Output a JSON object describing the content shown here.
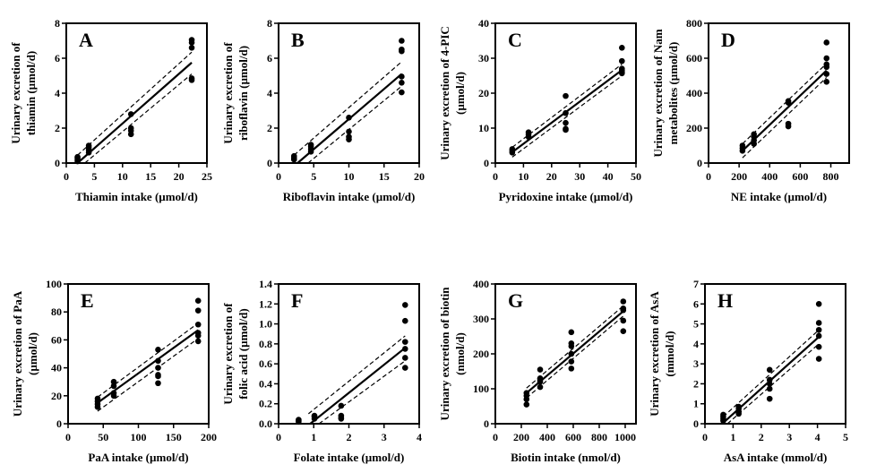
{
  "chart_data": [
    {
      "type": "scatter",
      "panel_label": "A",
      "xlabel": "Thiamin intake (µmol/d)",
      "ylabel": [
        "Urinary excretion of",
        "thiamin (µmol/d)"
      ],
      "xlim": [
        0,
        25
      ],
      "ylim": [
        0,
        8
      ],
      "xticks": [
        0,
        5,
        10,
        15,
        20,
        25
      ],
      "yticks": [
        0,
        2,
        4,
        6,
        8
      ],
      "ytick_labels": [
        "0",
        "2",
        "4",
        "6",
        "8"
      ],
      "points": [
        [
          2,
          0.1
        ],
        [
          2,
          0.2
        ],
        [
          2,
          0.3
        ],
        [
          2,
          0.35
        ],
        [
          4,
          0.6
        ],
        [
          4,
          0.75
        ],
        [
          4,
          0.9
        ],
        [
          4,
          1.0
        ],
        [
          11.5,
          2.8
        ],
        [
          11.5,
          2.0
        ],
        [
          11.5,
          1.85
        ],
        [
          11.5,
          1.65
        ],
        [
          22.3,
          7.05
        ],
        [
          22.3,
          6.9
        ],
        [
          22.3,
          6.6
        ],
        [
          22.3,
          4.85
        ],
        [
          22.3,
          4.75
        ]
      ],
      "fit": [
        [
          2,
          0
        ],
        [
          22.3,
          5.75
        ]
      ],
      "ci_upper": [
        [
          2,
          0.45
        ],
        [
          22.3,
          6.35
        ]
      ],
      "ci_lower": [
        [
          3.3,
          0
        ],
        [
          22.3,
          5.1
        ]
      ]
    },
    {
      "type": "scatter",
      "panel_label": "B",
      "xlabel": "Riboflavin intake (µmol/d)",
      "ylabel": [
        "Urinary excretion of",
        "riboflavin (µmol/d)"
      ],
      "xlim": [
        0,
        20
      ],
      "ylim": [
        0,
        8
      ],
      "xticks": [
        0,
        5,
        10,
        15,
        20
      ],
      "yticks": [
        0,
        2,
        4,
        6,
        8
      ],
      "ytick_labels": [
        "0",
        "2",
        "4",
        "6",
        "8"
      ],
      "points": [
        [
          2.2,
          0.2
        ],
        [
          2.2,
          0.3
        ],
        [
          2.2,
          0.4
        ],
        [
          4.6,
          0.65
        ],
        [
          4.6,
          0.8
        ],
        [
          4.6,
          0.95
        ],
        [
          4.6,
          1.05
        ],
        [
          10,
          2.6
        ],
        [
          10,
          1.8
        ],
        [
          10,
          1.5
        ],
        [
          10,
          1.35
        ],
        [
          17.5,
          7.0
        ],
        [
          17.5,
          6.5
        ],
        [
          17.5,
          6.4
        ],
        [
          17.5,
          4.95
        ],
        [
          17.5,
          4.6
        ],
        [
          17.5,
          4.05
        ]
      ],
      "fit": [
        [
          2.7,
          0
        ],
        [
          17.5,
          5.1
        ]
      ],
      "ci_upper": [
        [
          2.2,
          0.45
        ],
        [
          17.5,
          5.8
        ]
      ],
      "ci_lower": [
        [
          4.2,
          0
        ],
        [
          17.5,
          4.4
        ]
      ]
    },
    {
      "type": "scatter",
      "panel_label": "C",
      "xlabel": "Pyridoxine intake (µmol/d)",
      "ylabel": [
        "Urinary excretion of 4-PIC",
        "(µmol/d)"
      ],
      "xlim": [
        0,
        50
      ],
      "ylim": [
        0,
        40
      ],
      "xticks": [
        0,
        10,
        20,
        30,
        40,
        50
      ],
      "yticks": [
        0,
        10,
        20,
        30,
        40
      ],
      "ytick_labels": [
        "0",
        "10",
        "20",
        "30",
        "40"
      ],
      "points": [
        [
          6,
          3
        ],
        [
          6,
          3.5
        ],
        [
          6,
          4
        ],
        [
          11.8,
          7.5
        ],
        [
          11.8,
          8.2
        ],
        [
          11.8,
          8.8
        ],
        [
          25,
          19.2
        ],
        [
          25,
          14.3
        ],
        [
          25,
          11.5
        ],
        [
          25,
          9.8
        ],
        [
          25,
          9.5
        ],
        [
          45,
          33
        ],
        [
          45,
          29.2
        ],
        [
          45,
          27
        ],
        [
          45,
          26.5
        ],
        [
          45,
          26
        ],
        [
          45,
          25.7
        ]
      ],
      "fit": [
        [
          6,
          3.1
        ],
        [
          45,
          26.6
        ]
      ],
      "ci_upper": [
        [
          6,
          4.5
        ],
        [
          45,
          28.3
        ]
      ],
      "ci_lower": [
        [
          6,
          1.7
        ],
        [
          45,
          25
        ]
      ]
    },
    {
      "type": "scatter",
      "panel_label": "D",
      "xlabel": "NE intake (µmol/d)",
      "ylabel": [
        "Urinary excretion of Nam",
        "metabolites (µmol/d)"
      ],
      "xlim": [
        0,
        920
      ],
      "ylim": [
        0,
        800
      ],
      "xticks": [
        0,
        200,
        400,
        600,
        800
      ],
      "yticks": [
        0,
        200,
        400,
        600,
        800
      ],
      "ytick_labels": [
        "0",
        "200",
        "400",
        "600",
        "800"
      ],
      "points": [
        [
          222,
          70
        ],
        [
          222,
          85
        ],
        [
          222,
          100
        ],
        [
          297,
          110
        ],
        [
          297,
          130
        ],
        [
          297,
          150
        ],
        [
          297,
          165
        ],
        [
          522,
          355
        ],
        [
          522,
          345
        ],
        [
          522,
          225
        ],
        [
          522,
          210
        ],
        [
          772,
          690
        ],
        [
          772,
          600
        ],
        [
          772,
          565
        ],
        [
          772,
          550
        ],
        [
          772,
          510
        ],
        [
          772,
          465
        ]
      ],
      "fit": [
        [
          222,
          70
        ],
        [
          772,
          530
        ]
      ],
      "ci_upper": [
        [
          222,
          110
        ],
        [
          772,
          570
        ]
      ],
      "ci_lower": [
        [
          222,
          30
        ],
        [
          772,
          490
        ]
      ]
    },
    {
      "type": "scatter",
      "panel_label": "E",
      "xlabel": "PaA intake (µmol/d)",
      "ylabel": [
        "Urinary excretion of PaA",
        "(µmol/d)"
      ],
      "xlim": [
        0,
        200
      ],
      "ylim": [
        0,
        100
      ],
      "xticks": [
        0,
        50,
        100,
        150,
        200
      ],
      "yticks": [
        0,
        20,
        40,
        60,
        80,
        100
      ],
      "ytick_labels": [
        "0",
        "20",
        "40",
        "60",
        "80",
        "100"
      ],
      "points": [
        [
          42,
          12
        ],
        [
          42,
          14
        ],
        [
          42,
          16
        ],
        [
          42,
          18
        ],
        [
          65,
          20
        ],
        [
          65,
          22
        ],
        [
          65,
          27
        ],
        [
          65,
          30
        ],
        [
          128,
          53
        ],
        [
          128,
          45
        ],
        [
          128,
          40
        ],
        [
          128,
          35
        ],
        [
          128,
          34
        ],
        [
          128,
          29
        ],
        [
          185,
          88
        ],
        [
          185,
          81
        ],
        [
          185,
          71
        ],
        [
          185,
          65
        ],
        [
          185,
          63
        ],
        [
          185,
          59
        ]
      ],
      "fit": [
        [
          42,
          15
        ],
        [
          185,
          67
        ]
      ],
      "ci_upper": [
        [
          42,
          19
        ],
        [
          185,
          72
        ]
      ],
      "ci_lower": [
        [
          42,
          9
        ],
        [
          185,
          61
        ]
      ]
    },
    {
      "type": "scatter",
      "panel_label": "F",
      "xlabel": "Folate intake (µmol/d)",
      "ylabel": [
        "Urinary excretion of",
        "folic acid (µmol/d)"
      ],
      "xlim": [
        0,
        4
      ],
      "ylim": [
        0,
        1.4
      ],
      "xticks": [
        0,
        1,
        2,
        3,
        4
      ],
      "yticks": [
        0,
        0.2,
        0.4,
        0.6,
        0.8,
        1.0,
        1.2,
        1.4
      ],
      "ytick_labels": [
        "0.0",
        "0.2",
        "0.4",
        "0.6",
        "0.8",
        "1.0",
        "1.2",
        "1.4"
      ],
      "points": [
        [
          0.57,
          0.02
        ],
        [
          0.57,
          0.03
        ],
        [
          0.57,
          0.04
        ],
        [
          1.02,
          0.05
        ],
        [
          1.02,
          0.07
        ],
        [
          1.02,
          0.08
        ],
        [
          1.78,
          0.18
        ],
        [
          1.78,
          0.08
        ],
        [
          1.78,
          0.06
        ],
        [
          1.78,
          0.05
        ],
        [
          3.6,
          1.19
        ],
        [
          3.6,
          1.03
        ],
        [
          3.6,
          0.82
        ],
        [
          3.6,
          0.75
        ],
        [
          3.6,
          0.66
        ],
        [
          3.6,
          0.56
        ]
      ],
      "fit": [
        [
          0.9,
          0
        ],
        [
          3.6,
          0.76
        ]
      ],
      "ci_upper": [
        [
          0.85,
          0.1
        ],
        [
          3.6,
          0.88
        ]
      ],
      "ci_lower": [
        [
          1.15,
          0
        ],
        [
          3.6,
          0.63
        ]
      ]
    },
    {
      "type": "scatter",
      "panel_label": "G",
      "xlabel": "Biotin intake (nmol/d)",
      "ylabel": [
        "Urinary excretion of biotin",
        "(nmol/d)"
      ],
      "xlim": [
        0,
        1083
      ],
      "ylim": [
        0,
        400
      ],
      "xticks": [
        0,
        200,
        400,
        600,
        800,
        1000
      ],
      "yticks": [
        0,
        100,
        200,
        300,
        400
      ],
      "ytick_labels": [
        "0",
        "100",
        "200",
        "300",
        "400"
      ],
      "points": [
        [
          240,
          55
        ],
        [
          240,
          70
        ],
        [
          240,
          80
        ],
        [
          240,
          88
        ],
        [
          345,
          105
        ],
        [
          345,
          120
        ],
        [
          345,
          125
        ],
        [
          345,
          130
        ],
        [
          345,
          155
        ],
        [
          585,
          262
        ],
        [
          585,
          230
        ],
        [
          585,
          222
        ],
        [
          585,
          200
        ],
        [
          585,
          178
        ],
        [
          585,
          158
        ],
        [
          985,
          350
        ],
        [
          985,
          330
        ],
        [
          985,
          325
        ],
        [
          985,
          295
        ],
        [
          985,
          265
        ]
      ],
      "fit": [
        [
          240,
          88
        ],
        [
          985,
          322
        ]
      ],
      "ci_upper": [
        [
          240,
          102
        ],
        [
          985,
          337
        ]
      ],
      "ci_lower": [
        [
          240,
          74
        ],
        [
          985,
          308
        ]
      ]
    },
    {
      "type": "scatter",
      "panel_label": "H",
      "xlabel": "AsA intake (mmol/d)",
      "ylabel": [
        "Urinary excretion of AsA",
        "(mmol/d)"
      ],
      "xlim": [
        0,
        5
      ],
      "ylim": [
        0,
        7
      ],
      "xticks": [
        0,
        1,
        2,
        3,
        4,
        5
      ],
      "yticks": [
        0,
        1,
        2,
        3,
        4,
        5,
        6,
        7
      ],
      "ytick_labels": [
        "0",
        "1",
        "2",
        "3",
        "4",
        "5",
        "6",
        "7"
      ],
      "points": [
        [
          0.65,
          0.15
        ],
        [
          0.65,
          0.25
        ],
        [
          0.65,
          0.35
        ],
        [
          0.65,
          0.45
        ],
        [
          1.2,
          0.5
        ],
        [
          1.2,
          0.6
        ],
        [
          1.2,
          0.75
        ],
        [
          1.2,
          0.85
        ],
        [
          2.3,
          2.7
        ],
        [
          2.3,
          2.2
        ],
        [
          2.3,
          2.0
        ],
        [
          2.3,
          1.75
        ],
        [
          2.3,
          1.25
        ],
        [
          4.05,
          6.0
        ],
        [
          4.05,
          5.05
        ],
        [
          4.05,
          4.7
        ],
        [
          4.05,
          4.4
        ],
        [
          4.05,
          3.85
        ],
        [
          4.05,
          3.25
        ]
      ],
      "fit": [
        [
          0.65,
          0.05
        ],
        [
          4.05,
          4.35
        ]
      ],
      "ci_upper": [
        [
          0.65,
          0.35
        ],
        [
          4.05,
          4.7
        ]
      ],
      "ci_lower": [
        [
          0.8,
          0
        ],
        [
          4.05,
          4.0
        ]
      ]
    }
  ]
}
